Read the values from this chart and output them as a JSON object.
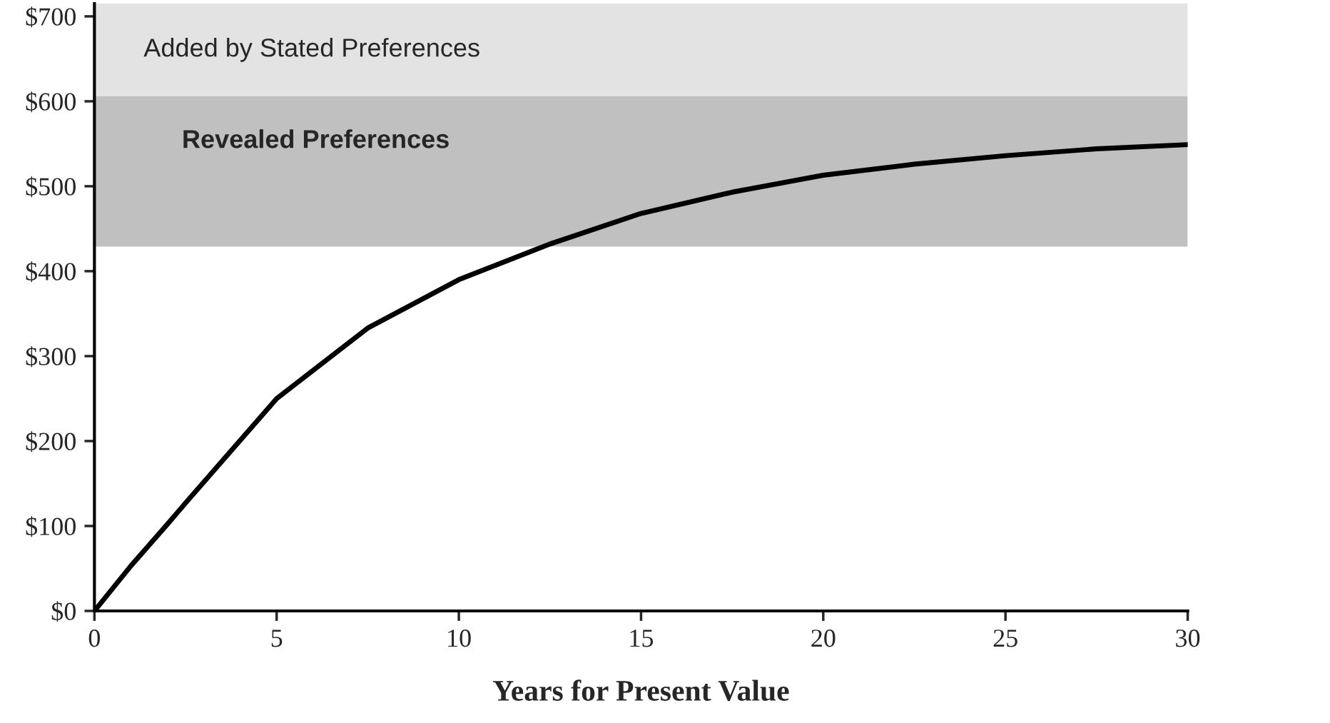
{
  "chart_data": {
    "type": "line",
    "xlabel": "Years for Present Value",
    "x": [
      0,
      1,
      2,
      2.5,
      5,
      7.5,
      10,
      12.5,
      15,
      17.5,
      20,
      22.5,
      25,
      27.5,
      30
    ],
    "series": [
      {
        "color": "#000000",
        "values": [
          0,
          53,
          102,
          127,
          250,
          333,
          390,
          432,
          468,
          493,
          513,
          526,
          536,
          544,
          549
        ]
      }
    ],
    "xlim": [
      0,
      30
    ],
    "xticks": [
      0,
      5,
      10,
      15,
      20,
      25,
      30
    ],
    "ylim": [
      0,
      715
    ],
    "yticks": [
      {
        "value": 0,
        "label": "$0"
      },
      {
        "value": 100,
        "label": "$100"
      },
      {
        "value": 200,
        "label": "$200"
      },
      {
        "value": 300,
        "label": "$300"
      },
      {
        "value": 400,
        "label": "$400"
      },
      {
        "value": 500,
        "label": "$500"
      },
      {
        "value": 600,
        "label": "$600"
      },
      {
        "value": 700,
        "label": "$700"
      }
    ],
    "bands": [
      {
        "axis": "y",
        "from": 606,
        "to": 715,
        "label": "Added by Stated Preferences",
        "color": "#e3e3e3"
      },
      {
        "axis": "y",
        "from": 429,
        "to": 606,
        "label": "Revealed Preferences",
        "color": "#c0c0c0"
      }
    ],
    "grid": false,
    "legend": false,
    "marker": "none",
    "line_style": "solid"
  }
}
